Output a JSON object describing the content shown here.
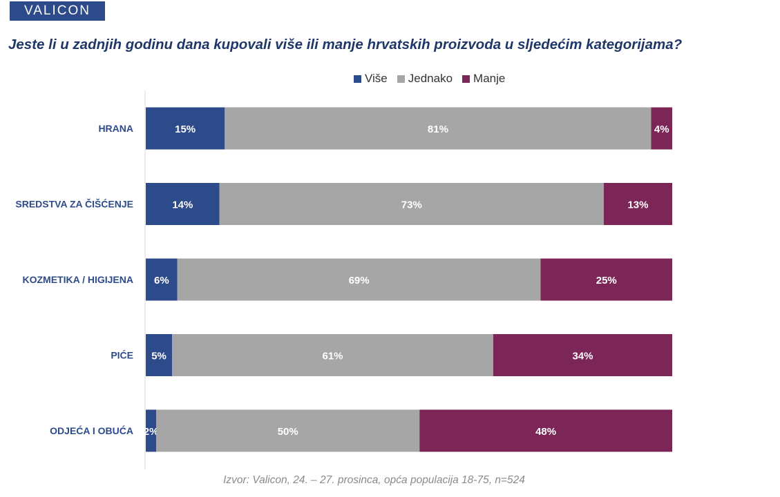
{
  "logo": {
    "text": "VALICON"
  },
  "colors": {
    "vise": "#2d4a8a",
    "jednako": "#a6a6a6",
    "manje": "#7b2657",
    "category_text": "#2d4a8a",
    "title_text": "#1f3768"
  },
  "chart_data": {
    "type": "bar",
    "orientation": "horizontal",
    "stacked": true,
    "title": "Jeste li u zadnjih godinu dana kupovali više ili manje hrvatskih proizvoda u sljedećim kategorijama?",
    "categories": [
      "HRANA",
      "SREDSTVA ZA ČIŠĆENJE",
      "KOZMETIKA / HIGIJENA",
      "PIĆE",
      "ODJEĆA I OBUĆA"
    ],
    "series": [
      {
        "name": "Više",
        "values": [
          15,
          14,
          6,
          5,
          2
        ],
        "labels": [
          "15%",
          "14%",
          "6%",
          "5%",
          "2%"
        ]
      },
      {
        "name": "Jednako",
        "values": [
          81,
          73,
          69,
          61,
          50
        ],
        "labels": [
          "81%",
          "73%",
          "69%",
          "61%",
          "50%"
        ]
      },
      {
        "name": "Manje",
        "values": [
          4,
          13,
          25,
          34,
          48
        ],
        "labels": [
          "4%",
          "13%",
          "25%",
          "34%",
          "48%"
        ]
      }
    ],
    "xlim": [
      0,
      100
    ],
    "legend_position": "top",
    "grid": false
  },
  "source": "Izvor: Valicon, 24. – 27. prosinca, opća populacija 18-75, n=524"
}
